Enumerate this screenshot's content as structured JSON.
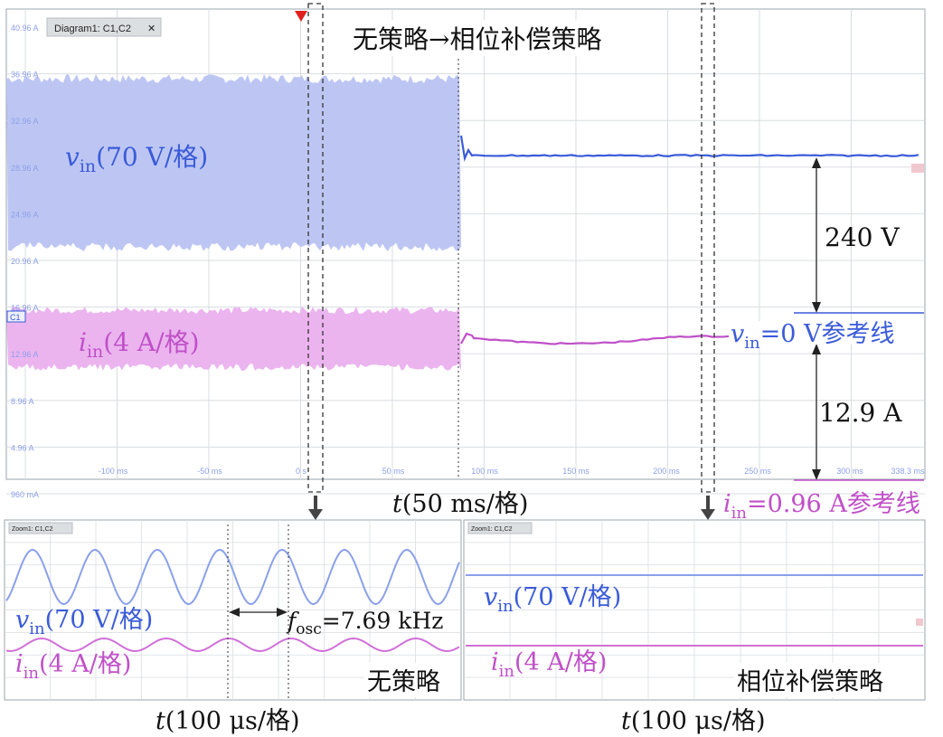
{
  "colors": {
    "voltage": "#3a5bd9",
    "voltage_band": "#b9c3f2",
    "current": "#c050c8",
    "current_band": "#eab0ee",
    "grid": "#d8dde2",
    "frame": "#9aa4ad",
    "axis_text": "#8ca0e8",
    "marker": "#e0201e",
    "annot": "#222222"
  },
  "main": {
    "tab_title": "Diagram1: C1,C2",
    "tab_close": "✕",
    "strategy_transition": "无策略→相位补偿策略",
    "vin_label_main": "v",
    "vin_label_sub": "in",
    "vin_label_tail": "(70 V/格)",
    "iin_label_main": "i",
    "iin_label_sub": "in",
    "iin_label_tail": "(4 A/格)",
    "c1_tag": "C1",
    "dc_voltage": "240 V",
    "dc_current": "12.9 A",
    "vref_main": "v",
    "vref_sub": "in",
    "vref_tail": "=0 V参考线",
    "iref_main": "i",
    "iref_sub": "in",
    "iref_tail": "=0.96 A参考线",
    "time_axis_main": "t",
    "time_axis_tail": "(50 ms/格)"
  },
  "zoom_left": {
    "tab_title": "Zoom1: C1,C2",
    "vin_main": "v",
    "vin_sub": "in",
    "vin_tail": "(70 V/格)",
    "iin_main": "i",
    "iin_sub": "in",
    "iin_tail": "(4 A/格)",
    "fosc_main": "f",
    "fosc_sub": "osc",
    "fosc_tail": "=7.69 kHz",
    "caption": "无策略",
    "time_axis_main": "t",
    "time_axis_tail": "(100 μs/格)"
  },
  "zoom_right": {
    "tab_title": "Zoom1: C1,C2",
    "vin_main": "v",
    "vin_sub": "in",
    "vin_tail": "(70 V/格)",
    "iin_main": "i",
    "iin_sub": "in",
    "iin_tail": "(4 A/格)",
    "caption": "相位补偿策略",
    "time_axis_main": "t",
    "time_axis_tail": "(100 μs/格)"
  },
  "chart_data": [
    {
      "type": "line",
      "y_tick_labels": [
        "40.96 A",
        "36.96 A",
        "32.96 A",
        "28.96 A",
        "24.96 A",
        "20.96 A",
        "16.96 A",
        "12.96 A",
        "8.96 A",
        "4.96 A",
        "960 mA"
      ],
      "x_tick_labels": [
        "-100 ms",
        "-50 ms",
        "0 s",
        "50 ms",
        "100 ms",
        "150 ms",
        "200 ms",
        "250 ms",
        "300 ms",
        "338.3 ms"
      ],
      "x": [
        -150,
        338.3
      ],
      "series": [
        {
          "name": "vin",
          "unit": "V",
          "scale": "70 V/格",
          "before_strategy": "oscillating",
          "after_strategy_dc": 240
        },
        {
          "name": "iin",
          "unit": "A",
          "scale": "4 A/格",
          "before_strategy": "oscillating",
          "after_strategy_dc": 12.9
        }
      ],
      "strategy_switch_time_ms": 85,
      "grid": true
    },
    {
      "type": "line",
      "caption": "无策略",
      "time_scale": "100 μs/格",
      "oscillation_frequency_khz": 7.69,
      "series": [
        {
          "name": "vin",
          "shape": "sinusoid",
          "cycles": 7
        },
        {
          "name": "iin",
          "shape": "sinusoid",
          "cycles": 7
        }
      ],
      "grid": true
    },
    {
      "type": "line",
      "caption": "相位补偿策略",
      "time_scale": "100 μs/格",
      "series": [
        {
          "name": "vin",
          "shape": "flat"
        },
        {
          "name": "iin",
          "shape": "flat"
        }
      ],
      "grid": true
    }
  ]
}
